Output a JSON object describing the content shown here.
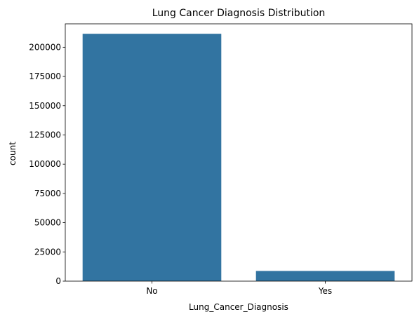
{
  "chart_data": {
    "type": "bar",
    "title": "Lung Cancer Diagnosis Distribution",
    "xlabel": "Lung_Cancer_Diagnosis",
    "ylabel": "count",
    "categories": [
      "No",
      "Yes"
    ],
    "values": [
      211500,
      8700
    ],
    "ylim": [
      0,
      220000
    ],
    "yticks": [
      0,
      25000,
      50000,
      75000,
      100000,
      125000,
      150000,
      175000,
      200000
    ],
    "grid": false,
    "bar_color": "#3274a1"
  }
}
